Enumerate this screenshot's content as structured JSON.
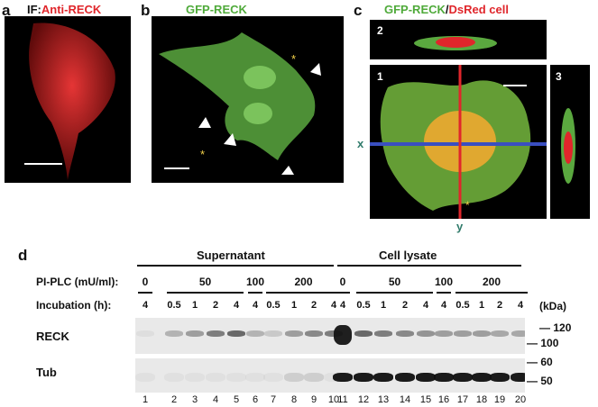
{
  "panels": {
    "a": {
      "letter": "a",
      "prefix": "IF:",
      "label": "Anti-RECK"
    },
    "b": {
      "letter": "b",
      "label": "GFP-RECK"
    },
    "c": {
      "letter": "c",
      "label_green": "GFP-RECK",
      "sep": "/",
      "label_red": "DsRed cell",
      "sub1": "1",
      "sub2": "2",
      "sub3": "3",
      "axis_x": "x",
      "axis_y": "y"
    },
    "d": {
      "letter": "d",
      "group_supernatant": "Supernatant",
      "group_lysate": "Cell lysate",
      "pi_plc_label": "PI-PLC (mU/ml):",
      "incubation_label": "Incubation (h):",
      "pi_values": [
        "0",
        "50",
        "100",
        "200",
        "0",
        "50",
        "100",
        "200"
      ],
      "incubation_values": [
        "4",
        "0.5",
        "1",
        "2",
        "4",
        "4",
        "0.5",
        "1",
        "2",
        "4",
        "4",
        "0.5",
        "1",
        "2",
        "4",
        "4",
        "0.5",
        "1",
        "2",
        "4"
      ],
      "kda_label": "(kDa)",
      "reck_label": "RECK",
      "tub_label": "Tub",
      "markers": [
        "120",
        "100",
        "60",
        "50"
      ],
      "lanes": [
        "1",
        "2",
        "3",
        "4",
        "5",
        "6",
        "7",
        "8",
        "9",
        "10",
        "11",
        "12",
        "13",
        "14",
        "15",
        "16",
        "17",
        "18",
        "19",
        "20"
      ]
    }
  },
  "colors": {
    "green": "#4faa3a",
    "red": "#e0262b",
    "blue": "#3a4fc0",
    "axis_text": "#2f7a6a"
  }
}
